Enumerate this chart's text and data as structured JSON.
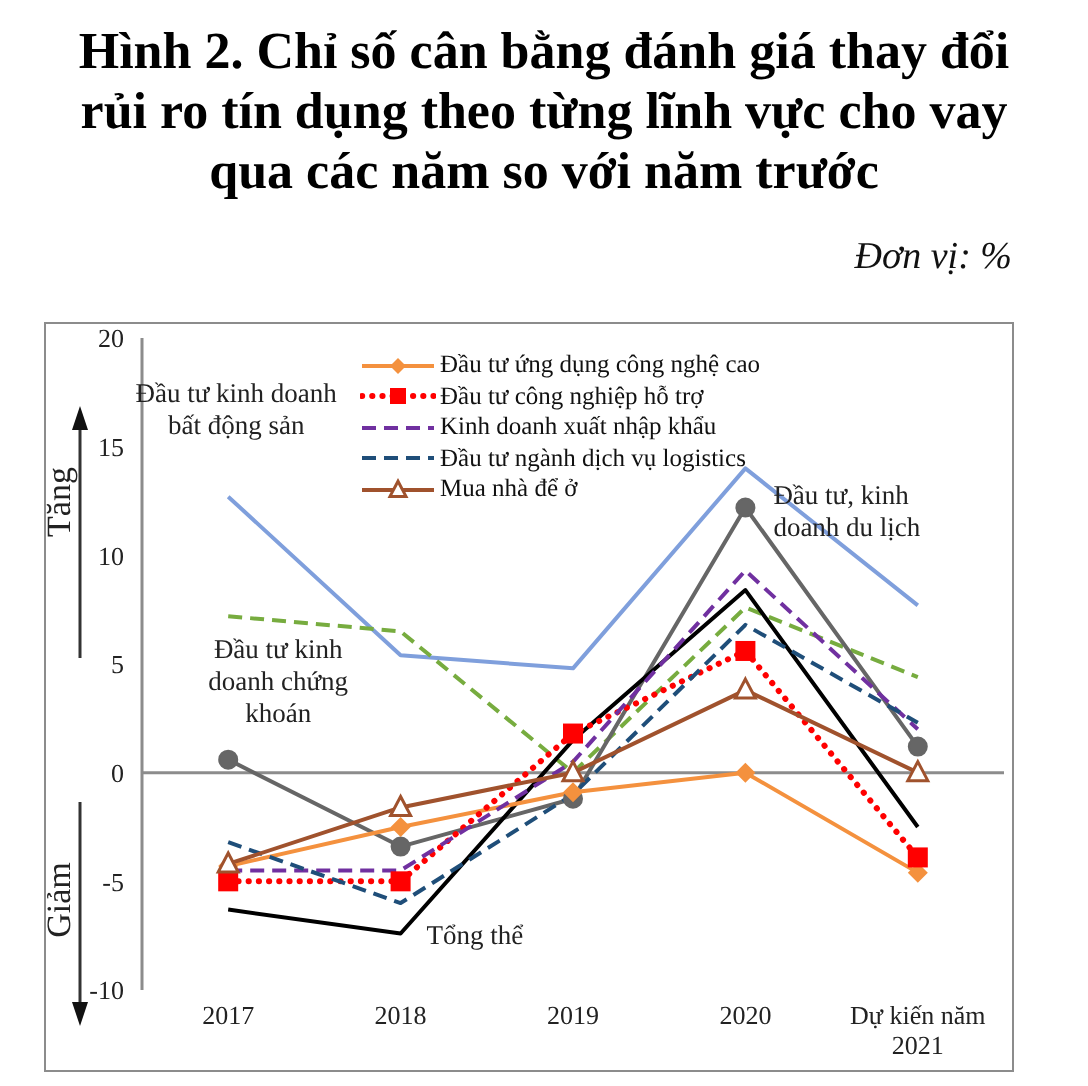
{
  "chart_data": {
    "type": "line",
    "title": "Hình 2. Chỉ số cân bằng đánh giá thay đổi rủi ro tín dụng theo từng lĩnh vực cho vay qua các năm so với năm trước",
    "subtitle": "Đơn vị: %",
    "categories": [
      "2017",
      "2018",
      "2019",
      "2020",
      "Dự kiến năm 2021"
    ],
    "ylim": [
      -10,
      20
    ],
    "yticks": [
      -10,
      -5,
      0,
      5,
      10,
      15,
      20
    ],
    "legend": "top",
    "ref_lines": [
      {
        "axis": "y",
        "value": 0,
        "color": "#8c8c8c"
      }
    ],
    "annotations": [
      "Tăng",
      "Giảm",
      {
        "text": "Đầu tư kinh doanh bất động sản",
        "x": "2017",
        "y": 12.7
      },
      {
        "text": "Đầu tư kinh doanh chứng khoán",
        "x": "2017",
        "y": 7.2
      },
      {
        "text": "Tổng thể",
        "x": "2018",
        "y": -7.4
      },
      {
        "text": "Đầu tư, kinh doanh du lịch",
        "x": "2020",
        "y": 12.2
      }
    ],
    "series": [
      {
        "color": "#7f9fdc",
        "values": [
          12.7,
          5.4,
          4.8,
          14.0,
          7.7
        ],
        "marker": "none",
        "line_style": "solid"
      },
      {
        "color": "#77ac3f",
        "values": [
          7.2,
          6.5,
          0,
          7.6,
          4.4
        ],
        "marker": "none",
        "line_style": "dashed"
      },
      {
        "color": "#666666",
        "values": [
          0.6,
          -3.4,
          -1.2,
          12.2,
          1.2
        ],
        "marker": "circle",
        "line_style": "solid"
      },
      {
        "color": "#000000",
        "values": [
          -6.3,
          -7.4,
          1.5,
          8.4,
          -2.5
        ],
        "marker": "none",
        "line_style": "solid"
      },
      {
        "name": "Đầu tư ứng dụng công nghệ cao",
        "color": "#f4913e",
        "values": [
          -4.3,
          -2.5,
          -0.9,
          0,
          -4.6
        ],
        "marker": "diamond",
        "line_style": "solid"
      },
      {
        "name": "Đầu tư công nghiệp hỗ trợ",
        "color": "#ff0000",
        "values": [
          -5.0,
          -5.0,
          1.8,
          5.6,
          -3.9
        ],
        "marker": "square",
        "line_style": "dotted"
      },
      {
        "name": "Kinh doanh xuất nhập khẩu",
        "color": "#7030a0",
        "values": [
          -4.5,
          -4.5,
          0.5,
          9.3,
          2.0
        ],
        "marker": "none",
        "line_style": "dashed"
      },
      {
        "name": "Đầu tư ngành dịch vụ logistics",
        "color": "#1f4e79",
        "values": [
          -3.2,
          -6.0,
          -1.0,
          6.8,
          2.3
        ],
        "marker": "none",
        "line_style": "dashed"
      },
      {
        "name": "Mua nhà để ở",
        "color": "#a0522d",
        "values": [
          -4.2,
          -1.6,
          0,
          3.8,
          0
        ],
        "marker": "triangle",
        "line_style": "solid"
      }
    ]
  }
}
